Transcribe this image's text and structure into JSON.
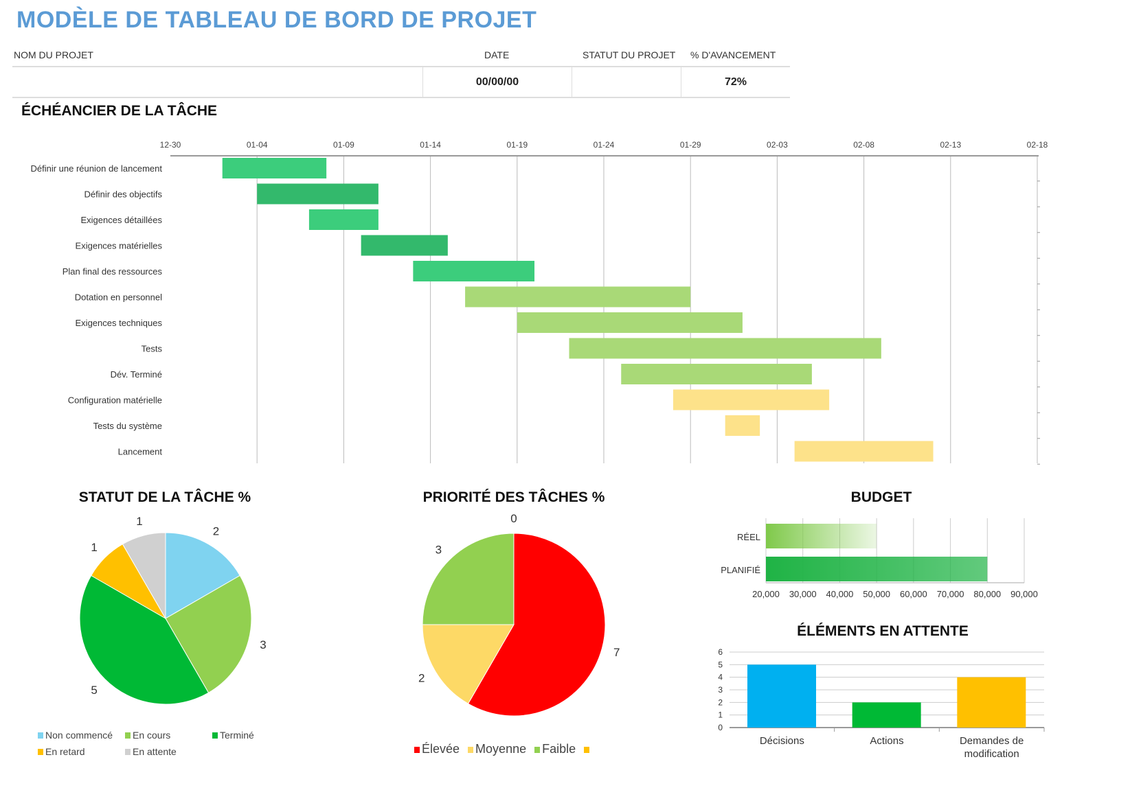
{
  "title": "MODÈLE DE TABLEAU DE BORD DE PROJET",
  "info": {
    "headers": {
      "project_name": "NOM DU PROJET",
      "date": "DATE",
      "status": "STATUT DU PROJET",
      "progress": "% D'AVANCEMENT"
    },
    "values": {
      "project_name": "",
      "date": "00/00/00",
      "status": "",
      "progress": "72%"
    }
  },
  "timeline": {
    "title": "ÉCHÉANCIER DE LA TÂCHE",
    "ticks": [
      "12-30",
      "01-04",
      "01-09",
      "01-14",
      "01-19",
      "01-24",
      "01-29",
      "02-03",
      "02-08",
      "02-13",
      "02-18"
    ],
    "tasks": [
      {
        "name": "Définir une réunion de lancement",
        "start": "01-02",
        "duration": 6,
        "color": "#3ccd7c"
      },
      {
        "name": "Définir des objectifs",
        "start": "01-04",
        "duration": 7,
        "color": "#33b96c"
      },
      {
        "name": "Exigences détaillées",
        "start": "01-07",
        "duration": 4,
        "color": "#3ccd7c"
      },
      {
        "name": "Exigences matérielles",
        "start": "01-10",
        "duration": 5,
        "color": "#33b96c"
      },
      {
        "name": "Plan final des ressources",
        "start": "01-13",
        "duration": 7,
        "color": "#3ccd7c"
      },
      {
        "name": "Dotation en personnel",
        "start": "01-16",
        "duration": 13,
        "color": "#a9d977"
      },
      {
        "name": "Exigences techniques",
        "start": "01-19",
        "duration": 13,
        "color": "#a9d977"
      },
      {
        "name": "Tests",
        "start": "01-22",
        "duration": 18,
        "color": "#a9d977"
      },
      {
        "name": "Dév. Terminé",
        "start": "01-25",
        "duration": 11,
        "color": "#a9d977"
      },
      {
        "name": "Configuration matérielle",
        "start": "01-28",
        "duration": 9,
        "color": "#fde28a"
      },
      {
        "name": "Tests du système",
        "start": "01-31",
        "duration": 2,
        "color": "#fde28a"
      },
      {
        "name": "Lancement",
        "start": "02-04",
        "duration": 8,
        "color": "#fde28a"
      }
    ]
  },
  "chart_data": [
    {
      "type": "pie",
      "title": "STATUT DE LA TÂCHE %",
      "slices": [
        {
          "name": "Non commencé",
          "value": 2,
          "color": "#7fd3f0"
        },
        {
          "name": "En cours",
          "value": 3,
          "color": "#92d050"
        },
        {
          "name": "Terminé",
          "value": 5,
          "color": "#00b935"
        },
        {
          "name": "En retard",
          "value": 1,
          "color": "#ffc000"
        },
        {
          "name": "En attente",
          "value": 1,
          "color": "#d0d0d0"
        }
      ]
    },
    {
      "type": "pie",
      "title": "PRIORITÉ DES TÂCHES %",
      "slices": [
        {
          "name": "Élevée",
          "value": 7,
          "color": "#ff0000"
        },
        {
          "name": "Moyenne",
          "value": 2,
          "color": "#fdd966"
        },
        {
          "name": "Faible",
          "value": 3,
          "color": "#92d050"
        },
        {
          "name": "",
          "value": 0,
          "color": "#ffc000"
        }
      ]
    },
    {
      "type": "bar",
      "orientation": "horizontal",
      "title": "BUDGET",
      "categories": [
        "RÉEL",
        "PLANIFIÉ"
      ],
      "values": [
        50000,
        80000
      ],
      "xlim": [
        20000,
        90000
      ],
      "ticks": [
        "20,000",
        "30,000",
        "40,000",
        "50,000",
        "60,000",
        "70,000",
        "80,000",
        "90,000"
      ],
      "grid": true
    },
    {
      "type": "bar",
      "title": "ÉLÉMENTS EN ATTENTE",
      "categories": [
        "Décisions",
        "Actions",
        "Demandes de modification"
      ],
      "values": [
        5,
        2,
        4
      ],
      "colors": [
        "#00b0f0",
        "#00b935",
        "#ffc000"
      ],
      "ylim": [
        0,
        6
      ],
      "grid": true
    }
  ]
}
